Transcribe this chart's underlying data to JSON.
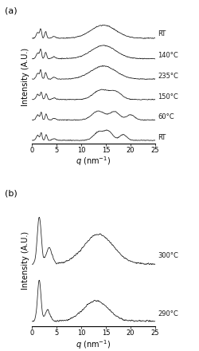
{
  "panel_a_labels": [
    "RT",
    "140°C",
    "235°C",
    "150°C",
    "60°C",
    "RT"
  ],
  "panel_b_labels": [
    "300°C",
    "290°C"
  ],
  "ylabel": "Intensity (A.U.)",
  "panel_a_label": "(a)",
  "panel_b_label": "(b)",
  "xlim": [
    0,
    25
  ],
  "background_color": "#ffffff",
  "line_color": "#1a1a1a",
  "fontsize_label": 7,
  "fontsize_tick": 6,
  "fontsize_annot": 6
}
